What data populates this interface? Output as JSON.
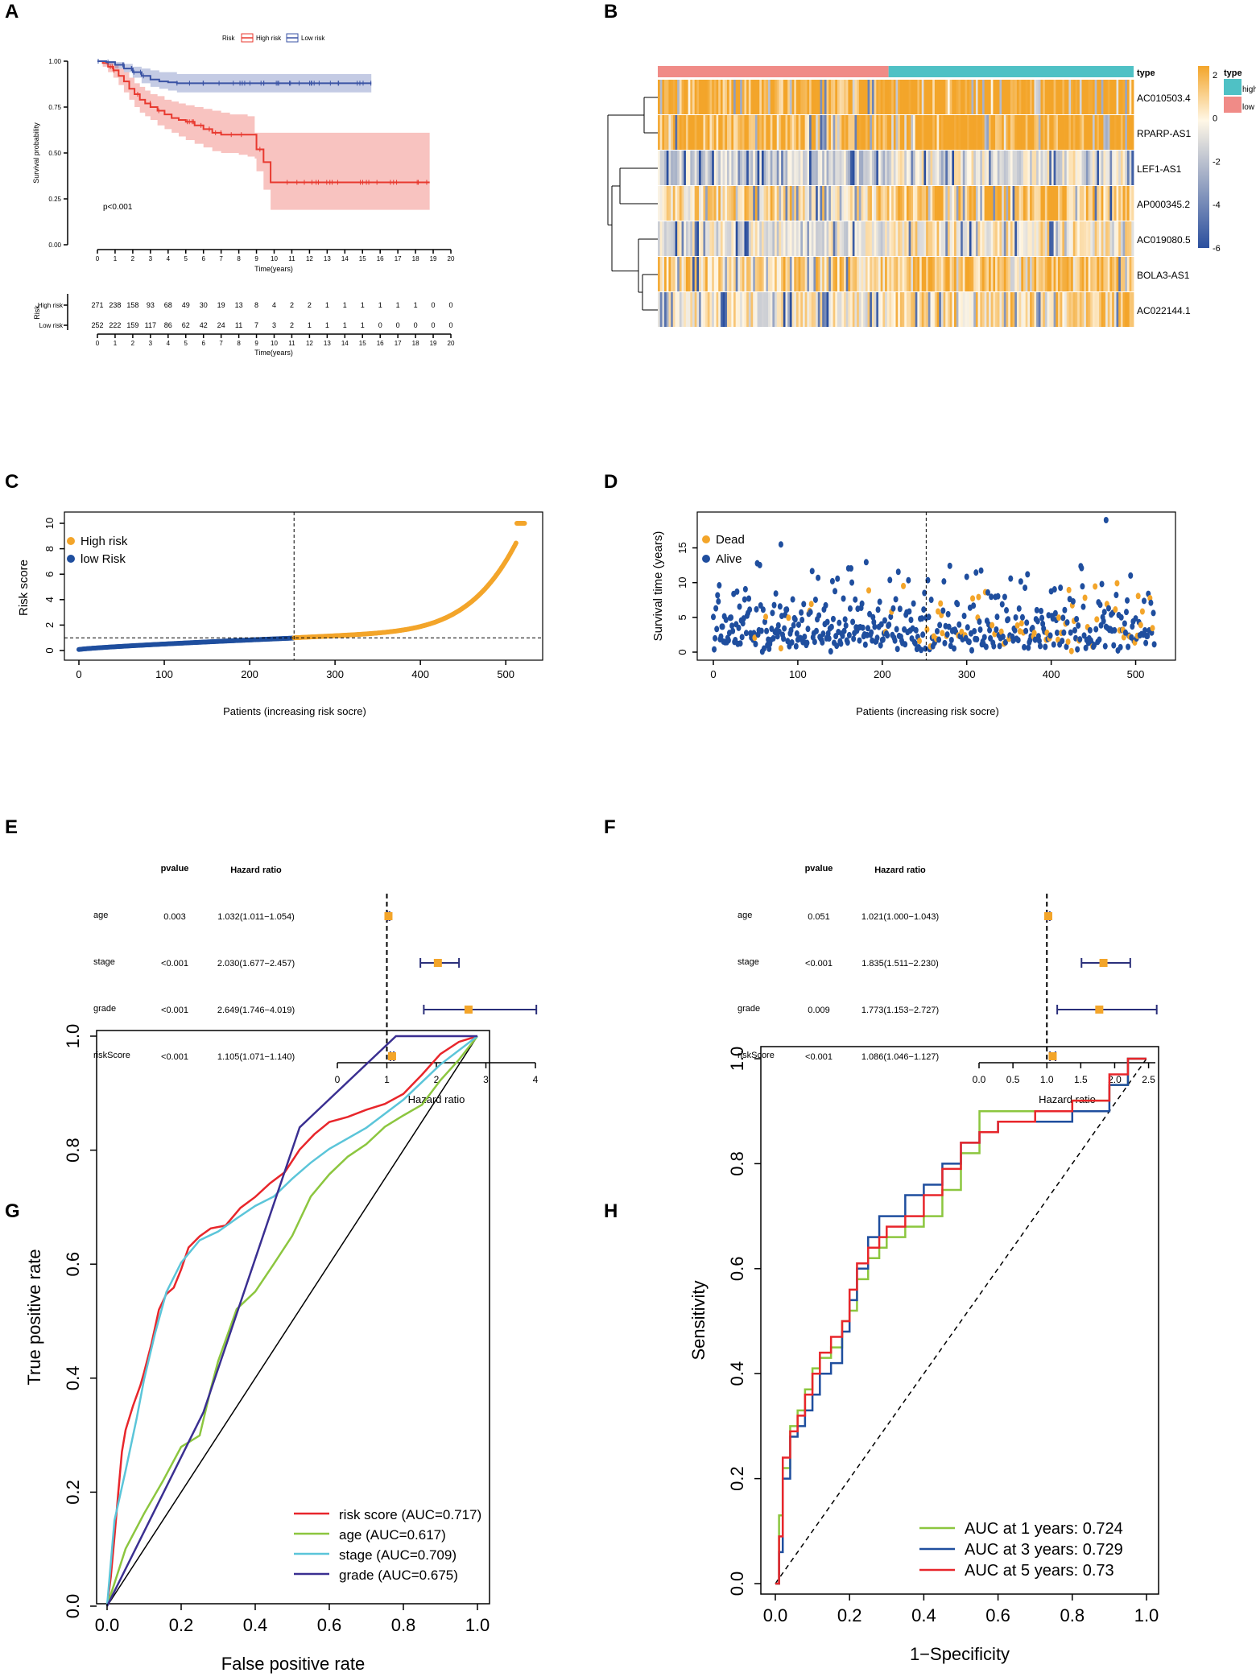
{
  "figure": {
    "panel_labels": [
      "A",
      "B",
      "C",
      "D",
      "E",
      "F",
      "G",
      "H"
    ]
  },
  "chart_data": [
    {
      "panel": "A",
      "type": "line",
      "subtype": "kaplan-meier",
      "legend_title": "Risk",
      "series": [
        {
          "name": "High risk",
          "color": "#e8392f",
          "x": [
            0,
            0.3,
            0.6,
            0.9,
            1.2,
            1.5,
            1.8,
            2.1,
            2.4,
            2.7,
            3,
            3.4,
            3.8,
            4.2,
            4.6,
            5,
            5.5,
            6,
            6.5,
            7,
            7.5,
            8,
            8.5,
            8.9,
            9.0,
            9.4,
            9.8,
            11,
            12,
            15,
            18.8
          ],
          "y": [
            1,
            0.99,
            0.97,
            0.95,
            0.92,
            0.89,
            0.85,
            0.82,
            0.79,
            0.77,
            0.75,
            0.73,
            0.71,
            0.69,
            0.68,
            0.67,
            0.65,
            0.63,
            0.61,
            0.6,
            0.6,
            0.6,
            0.6,
            0.6,
            0.52,
            0.45,
            0.34,
            0.34,
            0.34,
            0.34,
            0.34
          ],
          "ci_upper": [
            1,
            1,
            0.99,
            0.98,
            0.96,
            0.94,
            0.91,
            0.88,
            0.86,
            0.84,
            0.82,
            0.81,
            0.79,
            0.78,
            0.77,
            0.76,
            0.75,
            0.74,
            0.73,
            0.72,
            0.71,
            0.71,
            0.7,
            0.61,
            0.61,
            0.61,
            0.61,
            0.61,
            0.61,
            0.61,
            0.61
          ],
          "ci_lower": [
            1,
            0.97,
            0.94,
            0.91,
            0.87,
            0.83,
            0.79,
            0.75,
            0.72,
            0.7,
            0.68,
            0.65,
            0.63,
            0.61,
            0.59,
            0.57,
            0.55,
            0.53,
            0.51,
            0.5,
            0.5,
            0.49,
            0.48,
            0.47,
            0.4,
            0.3,
            0.19,
            0.19,
            0.19,
            0.19,
            0.19
          ]
        },
        {
          "name": "Low risk",
          "color": "#3a53a4",
          "x": [
            0,
            0.5,
            1,
            1.5,
            2,
            2.5,
            3,
            3.5,
            4,
            4.5,
            5,
            6,
            8,
            10,
            12,
            15.5
          ],
          "y": [
            1,
            0.995,
            0.98,
            0.96,
            0.94,
            0.92,
            0.9,
            0.89,
            0.885,
            0.88,
            0.88,
            0.88,
            0.88,
            0.88,
            0.88,
            0.88
          ],
          "ci_upper": [
            1,
            1,
            0.995,
            0.985,
            0.97,
            0.96,
            0.95,
            0.94,
            0.94,
            0.93,
            0.93,
            0.93,
            0.93,
            0.93,
            0.93,
            0.93
          ],
          "ci_lower": [
            1,
            0.98,
            0.96,
            0.94,
            0.91,
            0.88,
            0.86,
            0.85,
            0.84,
            0.83,
            0.83,
            0.83,
            0.83,
            0.83,
            0.83,
            0.83
          ]
        }
      ],
      "pvalue_text": "p<0.001",
      "ylabel": "Survival probability",
      "xlabel": "Time(years)",
      "xlim": [
        0,
        20
      ],
      "ylim": [
        0,
        1
      ],
      "xticks": [
        "0",
        "1",
        "2",
        "3",
        "4",
        "5",
        "6",
        "7",
        "8",
        "9",
        "10",
        "11",
        "12",
        "13",
        "14",
        "15",
        "16",
        "17",
        "18",
        "19",
        "20"
      ],
      "yticks": [
        "0.00",
        "0.25",
        "0.50",
        "0.75",
        "1.00"
      ],
      "risk_table": {
        "title": "Risk",
        "xlabel": "Time(years)",
        "rows": [
          {
            "label": "High risk",
            "color": "#e8392f",
            "counts": [
              "271",
              "238",
              "158",
              "93",
              "68",
              "49",
              "30",
              "19",
              "13",
              "8",
              "4",
              "2",
              "2",
              "1",
              "1",
              "1",
              "1",
              "1",
              "1",
              "0",
              "0"
            ]
          },
          {
            "label": "Low risk",
            "color": "#3a53a4",
            "counts": [
              "252",
              "222",
              "159",
              "117",
              "86",
              "62",
              "42",
              "24",
              "11",
              "7",
              "3",
              "2",
              "1",
              "1",
              "1",
              "1",
              "0",
              "0",
              "0",
              "0",
              "0"
            ]
          }
        ]
      }
    },
    {
      "panel": "B",
      "type": "heatmap",
      "rows": [
        "AC010503.4",
        "RPARP-AS1",
        "LEF1-AS1",
        "AP000345.2",
        "AC019080.5",
        "BOLA3-AS1",
        "AC022144.1"
      ],
      "row_baseline": [
        2.4,
        2.0,
        -1.0,
        1.0,
        -0.3,
        1.2,
        0.3
      ],
      "annotation": {
        "title": "type",
        "groups": [
          {
            "name": "high",
            "color": "#4fc1c5"
          },
          {
            "name": "low",
            "color": "#f08b87"
          }
        ]
      },
      "color_scale": {
        "ticks": [
          "2",
          "0",
          "-2",
          "-4",
          "-6"
        ],
        "low": "#2b4f9e",
        "mid": "#fff7e6",
        "high": "#f3a52a"
      }
    },
    {
      "panel": "C",
      "type": "scatter",
      "series": [
        {
          "name": "High risk",
          "color": "#f3a52a"
        },
        {
          "name": "low Risk",
          "color": "#1f4e9e"
        }
      ],
      "cutoff_x": 252,
      "cutoff_y": 1.0,
      "n_patients": 523,
      "xlabel": "Patients (increasing risk socre)",
      "ylabel": "Risk score",
      "xlim": [
        0,
        530
      ],
      "ylim": [
        0,
        10
      ],
      "xticks": [
        "0",
        "100",
        "200",
        "300",
        "400",
        "500"
      ],
      "yticks": [
        "0",
        "2",
        "4",
        "6",
        "8",
        "10"
      ]
    },
    {
      "panel": "D",
      "type": "scatter",
      "series": [
        {
          "name": "Dead",
          "color": "#f3a52a"
        },
        {
          "name": "Alive",
          "color": "#1f4e9e"
        }
      ],
      "cutoff_x": 252,
      "xlabel": "Patients (increasing risk socre)",
      "ylabel": "Survival time (years)",
      "xlim": [
        0,
        530
      ],
      "ylim": [
        0,
        19
      ],
      "xticks": [
        "0",
        "100",
        "200",
        "300",
        "400",
        "500"
      ],
      "yticks": [
        "0",
        "5",
        "10",
        "15"
      ]
    },
    {
      "panel": "E",
      "type": "forest",
      "col_pvalue": "pvalue",
      "col_hr": "Hazard ratio",
      "rows": [
        {
          "label": "age",
          "pvalue": "0.003",
          "hr_text": "1.032(1.011−1.054)",
          "hr": 1.032,
          "lo": 1.011,
          "hi": 1.054
        },
        {
          "label": "stage",
          "pvalue": "<0.001",
          "hr_text": "2.030(1.677−2.457)",
          "hr": 2.03,
          "lo": 1.677,
          "hi": 2.457
        },
        {
          "label": "grade",
          "pvalue": "<0.001",
          "hr_text": "2.649(1.746−4.019)",
          "hr": 2.649,
          "lo": 1.746,
          "hi": 4.019
        },
        {
          "label": "riskScore",
          "pvalue": "<0.001",
          "hr_text": "1.105(1.071−1.140)",
          "hr": 1.105,
          "lo": 1.071,
          "hi": 1.14
        }
      ],
      "xlabel": "Hazard ratio",
      "xlim": [
        0,
        4
      ],
      "xticks": [
        "0",
        "1",
        "2",
        "3",
        "4"
      ],
      "ref_line": 1
    },
    {
      "panel": "F",
      "type": "forest",
      "col_pvalue": "pvalue",
      "col_hr": "Hazard ratio",
      "rows": [
        {
          "label": "age",
          "pvalue": "0.051",
          "hr_text": "1.021(1.000−1.043)",
          "hr": 1.021,
          "lo": 1.0,
          "hi": 1.043
        },
        {
          "label": "stage",
          "pvalue": "<0.001",
          "hr_text": "1.835(1.511−2.230)",
          "hr": 1.835,
          "lo": 1.511,
          "hi": 2.23
        },
        {
          "label": "grade",
          "pvalue": "0.009",
          "hr_text": "1.773(1.153−2.727)",
          "hr": 1.773,
          "lo": 1.153,
          "hi": 2.727
        },
        {
          "label": "riskScore",
          "pvalue": "<0.001",
          "hr_text": "1.086(1.046−1.127)",
          "hr": 1.086,
          "lo": 1.046,
          "hi": 1.127
        }
      ],
      "xlabel": "Hazard ratio",
      "xlim": [
        0,
        2.6
      ],
      "xticks": [
        "0.0",
        "0.5",
        "1.0",
        "1.5",
        "2.0",
        "2.5"
      ],
      "ref_line": 1
    },
    {
      "panel": "G",
      "type": "line",
      "subtype": "roc",
      "xlabel": "False positive rate",
      "ylabel": "True positive rate",
      "xlim": [
        0,
        1
      ],
      "ylim": [
        0,
        1
      ],
      "xticks": [
        "0.0",
        "0.2",
        "0.4",
        "0.6",
        "0.8",
        "1.0"
      ],
      "yticks": [
        "0.0",
        "0.2",
        "0.4",
        "0.6",
        "0.8",
        "1.0"
      ],
      "series": [
        {
          "name": "risk score (AUC=0.717)",
          "color": "#e8262b",
          "x": [
            0,
            0.01,
            0.02,
            0.03,
            0.04,
            0.05,
            0.07,
            0.09,
            0.1,
            0.12,
            0.14,
            0.16,
            0.18,
            0.2,
            0.22,
            0.25,
            0.28,
            0.32,
            0.36,
            0.4,
            0.44,
            0.48,
            0.52,
            0.56,
            0.6,
            0.65,
            0.7,
            0.75,
            0.8,
            0.85,
            0.9,
            0.95,
            1.0
          ],
          "y": [
            0,
            0.05,
            0.12,
            0.2,
            0.27,
            0.31,
            0.35,
            0.39,
            0.41,
            0.46,
            0.52,
            0.55,
            0.56,
            0.59,
            0.63,
            0.65,
            0.66,
            0.67,
            0.7,
            0.72,
            0.74,
            0.76,
            0.8,
            0.83,
            0.85,
            0.86,
            0.87,
            0.88,
            0.9,
            0.93,
            0.97,
            0.99,
            1.0
          ]
        },
        {
          "name": "age (AUC=0.617)",
          "color": "#8cc63f",
          "x": [
            0,
            0.05,
            0.1,
            0.15,
            0.2,
            0.25,
            0.28,
            0.3,
            0.35,
            0.4,
            0.45,
            0.5,
            0.55,
            0.6,
            0.65,
            0.7,
            0.75,
            0.8,
            0.85,
            0.9,
            0.95,
            1.0
          ],
          "y": [
            0,
            0.1,
            0.16,
            0.22,
            0.28,
            0.3,
            0.38,
            0.43,
            0.52,
            0.55,
            0.6,
            0.65,
            0.72,
            0.76,
            0.79,
            0.81,
            0.84,
            0.86,
            0.88,
            0.92,
            0.96,
            1.0
          ]
        },
        {
          "name": "stage (AUC=0.709)",
          "color": "#5bc5d9",
          "x": [
            0,
            0.02,
            0.05,
            0.08,
            0.1,
            0.13,
            0.16,
            0.2,
            0.25,
            0.3,
            0.35,
            0.4,
            0.45,
            0.5,
            0.55,
            0.6,
            0.7,
            0.8,
            0.9,
            1.0
          ],
          "y": [
            0,
            0.15,
            0.24,
            0.33,
            0.4,
            0.48,
            0.55,
            0.6,
            0.64,
            0.66,
            0.68,
            0.7,
            0.72,
            0.75,
            0.78,
            0.8,
            0.84,
            0.89,
            0.95,
            1.0
          ]
        },
        {
          "name": "grade (AUC=0.675)",
          "color": "#3a2f91",
          "x": [
            0,
            0.26,
            0.52,
            0.78,
            1.0
          ],
          "y": [
            0,
            0.34,
            0.84,
            1.0,
            1.0
          ]
        }
      ]
    },
    {
      "panel": "H",
      "type": "line",
      "subtype": "time-roc",
      "xlabel": "1−Specificity",
      "ylabel": "Sensitivity",
      "xlim": [
        0,
        1
      ],
      "ylim": [
        0,
        1
      ],
      "xticks": [
        "0.0",
        "0.2",
        "0.4",
        "0.6",
        "0.8",
        "1.0"
      ],
      "yticks": [
        "0.0",
        "0.2",
        "0.4",
        "0.6",
        "0.8",
        "1.0"
      ],
      "series": [
        {
          "name": "AUC at 1 years: 0.724",
          "color": "#8cc63f",
          "x": [
            0,
            0.01,
            0.02,
            0.04,
            0.06,
            0.08,
            0.1,
            0.12,
            0.15,
            0.18,
            0.2,
            0.22,
            0.25,
            0.28,
            0.3,
            0.35,
            0.4,
            0.45,
            0.5,
            0.55,
            0.6,
            0.7,
            0.8,
            0.9,
            0.95,
            1.0
          ],
          "y": [
            0,
            0.13,
            0.22,
            0.3,
            0.33,
            0.37,
            0.41,
            0.43,
            0.45,
            0.5,
            0.52,
            0.58,
            0.62,
            0.64,
            0.66,
            0.68,
            0.7,
            0.75,
            0.82,
            0.9,
            0.9,
            0.9,
            0.92,
            0.95,
            1.0,
            1.0
          ]
        },
        {
          "name": "AUC at 3 years: 0.729",
          "color": "#1f4e9e",
          "x": [
            0,
            0.01,
            0.02,
            0.04,
            0.06,
            0.08,
            0.1,
            0.12,
            0.15,
            0.18,
            0.2,
            0.22,
            0.25,
            0.28,
            0.3,
            0.35,
            0.4,
            0.45,
            0.5,
            0.55,
            0.6,
            0.7,
            0.8,
            0.9,
            0.95,
            1.0
          ],
          "y": [
            0,
            0.06,
            0.2,
            0.28,
            0.3,
            0.33,
            0.36,
            0.4,
            0.42,
            0.48,
            0.54,
            0.6,
            0.66,
            0.7,
            0.7,
            0.74,
            0.76,
            0.8,
            0.84,
            0.86,
            0.88,
            0.88,
            0.9,
            0.95,
            1.0,
            1.0
          ]
        },
        {
          "name": "AUC at 5 years: 0.73",
          "color": "#e8262b",
          "x": [
            0,
            0.01,
            0.02,
            0.04,
            0.06,
            0.08,
            0.1,
            0.12,
            0.15,
            0.18,
            0.2,
            0.22,
            0.25,
            0.28,
            0.3,
            0.35,
            0.4,
            0.45,
            0.5,
            0.55,
            0.6,
            0.7,
            0.8,
            0.9,
            0.95,
            1.0
          ],
          "y": [
            0,
            0.09,
            0.24,
            0.29,
            0.32,
            0.36,
            0.4,
            0.44,
            0.47,
            0.5,
            0.56,
            0.61,
            0.64,
            0.66,
            0.68,
            0.7,
            0.74,
            0.79,
            0.84,
            0.86,
            0.88,
            0.9,
            0.92,
            0.97,
            1.0,
            1.0
          ]
        }
      ]
    }
  ]
}
